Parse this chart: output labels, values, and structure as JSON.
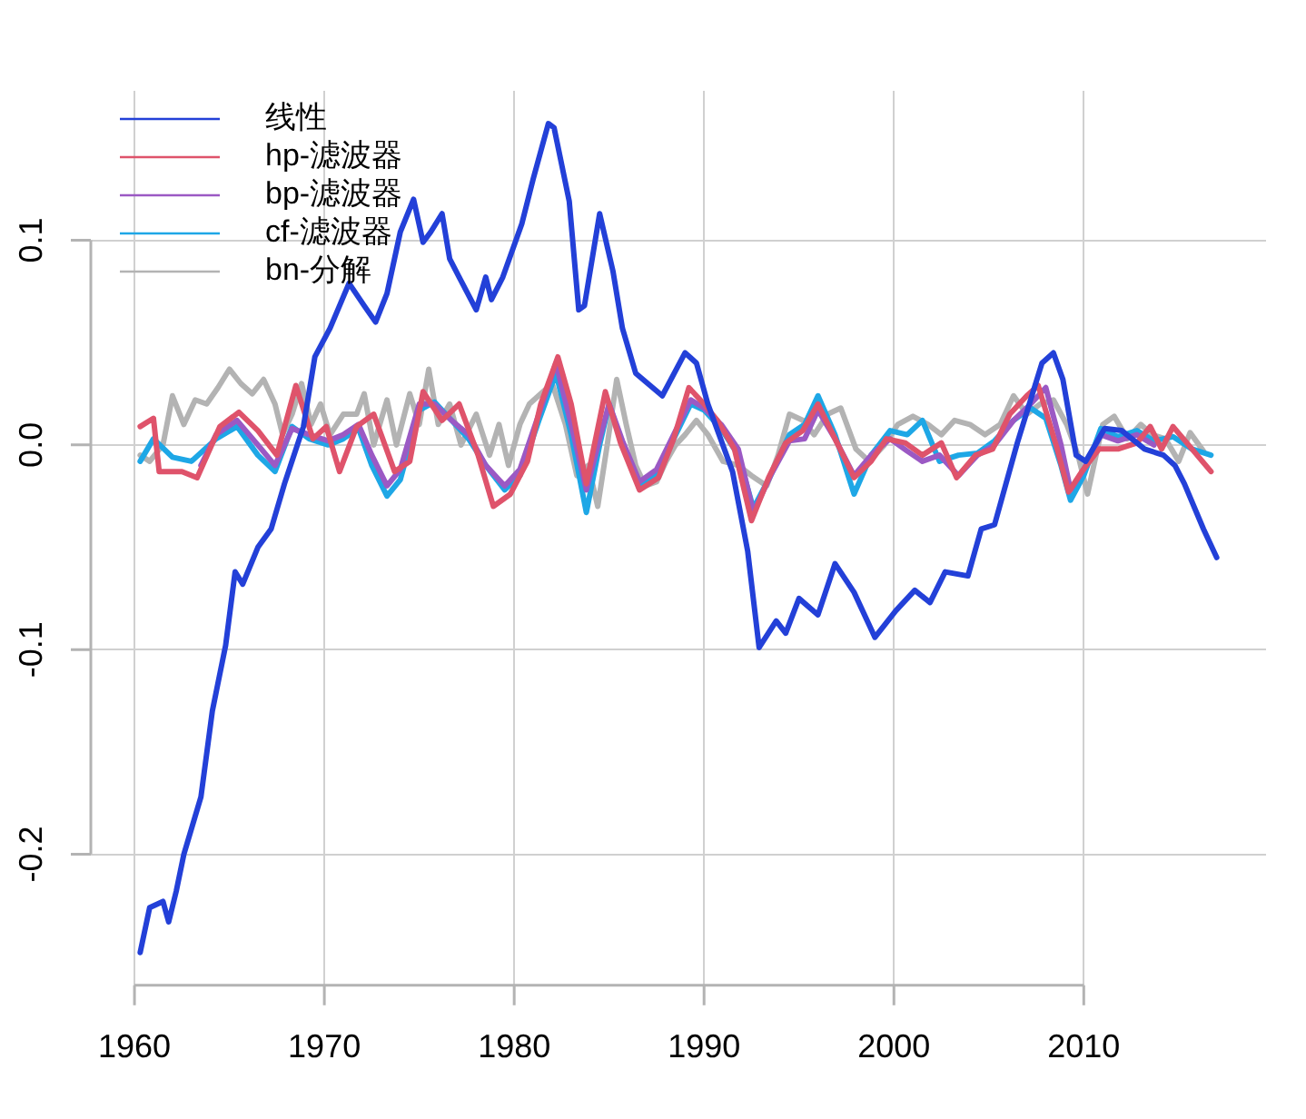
{
  "chart_data": {
    "type": "line",
    "legend": "top left",
    "grid": true,
    "marker": "none",
    "line_style": "solid",
    "xlim": [
      1957.7,
      2019.6
    ],
    "ylim": [
      -0.264,
      0.173
    ],
    "xticks": [
      1960,
      1970,
      1980,
      1990,
      2000,
      2010
    ],
    "yticks": [
      -0.2,
      -0.1,
      {
        "value": 0,
        "label": "0.0"
      },
      0.1
    ],
    "series": [
      {
        "name": "线性",
        "color": "#2340d8",
        "x": [
          1960.3,
          1960.8,
          1961.5,
          1961.8,
          1962.2,
          1962.6,
          1963.5,
          1964.1,
          1964.8,
          1965.3,
          1965.7,
          1966.5,
          1967.2,
          1967.9,
          1968.9,
          1969.5,
          1970.3,
          1971.3,
          1972.1,
          1972.7,
          1973.3,
          1974.0,
          1974.7,
          1975.2,
          1975.6,
          1976.2,
          1976.6,
          1977.1,
          1978.0,
          1978.5,
          1978.8,
          1979.4,
          1980.4,
          1981.0,
          1981.8,
          1982.1,
          1982.9,
          1983.4,
          1983.7,
          1984.5,
          1985.2,
          1985.7,
          1986.4,
          1987.8,
          1989.0,
          1989.6,
          1990.2,
          1991.5,
          1992.3,
          1992.9,
          1993.8,
          1994.3,
          1995.0,
          1996.0,
          1996.9,
          1997.9,
          1999.0,
          2000.1,
          2001.1,
          2001.9,
          2002.7,
          2003.9,
          2004.6,
          2005.3,
          2006.5,
          2007.8,
          2008.4,
          2008.9,
          2009.6,
          2010.1,
          2011.1,
          2012.0,
          2013.2,
          2014.2,
          2014.8,
          2015.3,
          2016.3,
          2017.0
        ],
        "values": [
          -0.248,
          -0.226,
          -0.223,
          -0.233,
          -0.218,
          -0.2,
          -0.172,
          -0.13,
          -0.098,
          -0.062,
          -0.068,
          -0.05,
          -0.041,
          -0.019,
          0.009,
          0.043,
          0.057,
          0.079,
          0.068,
          0.06,
          0.074,
          0.104,
          0.12,
          0.099,
          0.104,
          0.113,
          0.091,
          0.082,
          0.066,
          0.082,
          0.071,
          0.082,
          0.108,
          0.13,
          0.157,
          0.155,
          0.119,
          0.066,
          0.068,
          0.113,
          0.085,
          0.057,
          0.035,
          0.024,
          0.045,
          0.04,
          0.02,
          -0.013,
          -0.052,
          -0.099,
          -0.086,
          -0.092,
          -0.075,
          -0.083,
          -0.058,
          -0.072,
          -0.094,
          -0.081,
          -0.071,
          -0.077,
          -0.062,
          -0.064,
          -0.041,
          -0.039,
          0.001,
          0.04,
          0.045,
          0.032,
          -0.005,
          -0.008,
          0.008,
          0.007,
          -0.002,
          -0.005,
          -0.01,
          -0.019,
          -0.041,
          -0.055
        ]
      },
      {
        "name": "hp-滤波器",
        "color": "#df536b",
        "x": [
          1960.3,
          1961.0,
          1961.3,
          1962.5,
          1963.3,
          1964.5,
          1965.5,
          1966.5,
          1967.5,
          1968.5,
          1969.4,
          1970.1,
          1970.8,
          1971.7,
          1972.6,
          1973.7,
          1974.5,
          1975.2,
          1976.2,
          1977.1,
          1978.1,
          1978.9,
          1979.8,
          1980.7,
          1981.4,
          1982.3,
          1983.0,
          1983.8,
          1984.8,
          1985.6,
          1986.6,
          1987.6,
          1988.4,
          1989.2,
          1990.0,
          1990.7,
          1991.6,
          1992.5,
          1993.4,
          1994.3,
          1995.2,
          1996.0,
          1996.9,
          1997.9,
          1998.8,
          1999.6,
          2000.6,
          2001.5,
          2002.5,
          2003.3,
          2004.3,
          2005.2,
          2006.1,
          2007.0,
          2007.6,
          2008.6,
          2009.2,
          2009.9,
          2010.8,
          2011.8,
          2012.8,
          2013.5,
          2014.1,
          2014.7,
          2015.7,
          2016.7
        ],
        "values": [
          0.009,
          0.013,
          -0.013,
          -0.013,
          -0.016,
          0.009,
          0.016,
          0.007,
          -0.005,
          0.029,
          0.003,
          0.009,
          -0.013,
          0.009,
          0.015,
          -0.013,
          -0.008,
          0.026,
          0.012,
          0.02,
          -0.005,
          -0.03,
          -0.024,
          -0.008,
          0.02,
          0.043,
          0.02,
          -0.019,
          0.026,
          0.001,
          -0.022,
          -0.016,
          0.003,
          0.028,
          0.02,
          0.012,
          -0.002,
          -0.037,
          -0.016,
          0.001,
          0.007,
          0.02,
          0.003,
          -0.016,
          -0.008,
          0.003,
          0.001,
          -0.005,
          0.001,
          -0.016,
          -0.005,
          -0.002,
          0.015,
          0.024,
          0.029,
          -0.002,
          -0.023,
          -0.013,
          -0.002,
          -0.002,
          0.001,
          0.009,
          -0.002,
          0.009,
          -0.002,
          -0.013
        ]
      },
      {
        "name": "bp-滤波器",
        "color": "#9b59c4",
        "x": [
          1963.5,
          1964.3,
          1965.4,
          1966.5,
          1967.4,
          1968.3,
          1969.2,
          1970.2,
          1971.0,
          1971.8,
          1972.5,
          1973.3,
          1974.0,
          1975.0,
          1975.8,
          1976.7,
          1977.6,
          1978.5,
          1979.5,
          1980.3,
          1981.3,
          1982.2,
          1983.0,
          1983.8,
          1984.5,
          1985.0,
          1985.7,
          1986.6,
          1987.5,
          1988.4,
          1989.3,
          1990.0,
          1990.9,
          1991.8,
          1992.6,
          1993.5,
          1994.5,
          1995.3,
          1996.0,
          1996.9,
          1997.9,
          1998.8,
          1999.8,
          2000.7,
          2001.5,
          2002.4,
          2003.4,
          2004.4,
          2005.3,
          2006.3,
          2007.2,
          2008.0,
          2008.8,
          2009.3,
          2010.0,
          2010.9,
          2011.8,
          2012.8,
          2013.7
        ],
        "values": [
          -0.01,
          0.005,
          0.012,
          0.0,
          -0.01,
          0.008,
          0.005,
          0.002,
          0.005,
          0.01,
          -0.005,
          -0.02,
          -0.012,
          0.02,
          0.02,
          0.012,
          0.005,
          -0.01,
          -0.02,
          -0.012,
          0.015,
          0.04,
          0.01,
          -0.022,
          0.003,
          0.02,
          0.002,
          -0.018,
          -0.012,
          0.005,
          0.022,
          0.018,
          0.01,
          -0.002,
          -0.033,
          -0.015,
          0.002,
          0.003,
          0.017,
          0.003,
          -0.015,
          -0.005,
          0.003,
          -0.003,
          -0.008,
          -0.005,
          -0.015,
          -0.005,
          0.0,
          0.012,
          0.02,
          0.028,
          0.0,
          -0.022,
          -0.012,
          0.005,
          0.002,
          0.005,
          0.0
        ]
      },
      {
        "name": "cf-滤波器",
        "color": "#1ea7e6",
        "x": [
          1960.3,
          1961.0,
          1962.0,
          1963.0,
          1964.3,
          1965.4,
          1966.5,
          1967.4,
          1968.3,
          1969.2,
          1970.2,
          1971.0,
          1971.8,
          1972.5,
          1973.3,
          1974.0,
          1975.0,
          1975.8,
          1976.7,
          1977.6,
          1978.5,
          1979.5,
          1980.3,
          1981.3,
          1982.2,
          1983.0,
          1983.8,
          1984.5,
          1985.0,
          1985.7,
          1986.6,
          1987.5,
          1988.4,
          1989.3,
          1990.0,
          1990.9,
          1991.8,
          1992.6,
          1993.5,
          1994.5,
          1995.3,
          1996.0,
          1996.9,
          1997.9,
          1998.8,
          1999.8,
          2000.7,
          2001.5,
          2002.4,
          2003.4,
          2004.4,
          2005.3,
          2006.3,
          2007.2,
          2008.0,
          2008.8,
          2009.3,
          2010.0,
          2010.9,
          2011.8,
          2012.8,
          2013.7,
          2014.7,
          2015.7,
          2016.7
        ],
        "values": [
          -0.008,
          0.003,
          -0.006,
          -0.008,
          0.003,
          0.009,
          -0.005,
          -0.013,
          0.009,
          0.003,
          0.0,
          0.003,
          0.008,
          -0.01,
          -0.025,
          -0.017,
          0.017,
          0.021,
          0.012,
          0.003,
          -0.01,
          -0.022,
          -0.015,
          0.012,
          0.035,
          0.005,
          -0.033,
          0.0,
          0.02,
          0.0,
          -0.02,
          -0.015,
          0.003,
          0.02,
          0.017,
          0.008,
          -0.005,
          -0.031,
          -0.015,
          0.005,
          0.01,
          0.024,
          0.005,
          -0.024,
          -0.005,
          0.007,
          0.005,
          0.012,
          -0.008,
          -0.005,
          -0.004,
          0.002,
          0.012,
          0.018,
          0.013,
          -0.01,
          -0.027,
          -0.015,
          0.008,
          0.004,
          0.007,
          0.002,
          0.004,
          -0.002,
          -0.005
        ]
      },
      {
        "name": "bn-分解",
        "color": "#b3b3b3",
        "x": [
          1960.3,
          1960.8,
          1961.5,
          1962.0,
          1962.6,
          1963.2,
          1963.8,
          1964.4,
          1965.0,
          1965.6,
          1966.2,
          1966.8,
          1967.4,
          1967.8,
          1968.3,
          1968.8,
          1969.3,
          1969.8,
          1970.3,
          1971.0,
          1971.7,
          1972.1,
          1972.6,
          1973.3,
          1973.8,
          1974.5,
          1975.0,
          1975.5,
          1976.0,
          1976.6,
          1977.2,
          1978.0,
          1978.7,
          1979.2,
          1979.7,
          1980.3,
          1980.8,
          1981.4,
          1982.0,
          1982.7,
          1983.3,
          1983.9,
          1984.4,
          1984.9,
          1985.4,
          1985.9,
          1986.4,
          1986.9,
          1987.5,
          1988.0,
          1988.5,
          1989.0,
          1989.6,
          1990.2,
          1991.0,
          1991.8,
          1992.5,
          1993.3,
          1993.9,
          1994.5,
          1995.2,
          1995.8,
          1996.5,
          1997.2,
          1998.0,
          1998.7,
          1999.5,
          2000.2,
          2001.0,
          2001.8,
          2002.5,
          2003.2,
          2004.0,
          2004.8,
          2005.6,
          2006.3,
          2007.0,
          2007.7,
          2008.4,
          2009.1,
          2009.7,
          2010.2,
          2011.0,
          2011.6,
          2012.3,
          2013.0,
          2013.6,
          2014.3,
          2015.0,
          2015.6,
          2016.3
        ],
        "values": [
          -0.005,
          -0.008,
          0.0,
          0.024,
          0.01,
          0.022,
          0.02,
          0.028,
          0.037,
          0.03,
          0.025,
          0.032,
          0.02,
          0.005,
          0.015,
          0.03,
          0.01,
          0.02,
          0.005,
          0.015,
          0.015,
          0.025,
          0.0,
          0.022,
          0.0,
          0.025,
          0.01,
          0.037,
          0.01,
          0.02,
          0.0,
          0.015,
          -0.005,
          0.01,
          -0.01,
          0.01,
          0.02,
          0.025,
          0.03,
          0.01,
          -0.015,
          -0.01,
          -0.03,
          0.0,
          0.032,
          0.01,
          -0.01,
          -0.02,
          -0.018,
          -0.008,
          0.0,
          0.005,
          0.012,
          0.005,
          -0.008,
          -0.01,
          -0.015,
          -0.02,
          -0.005,
          0.015,
          0.012,
          0.005,
          0.015,
          0.018,
          -0.002,
          -0.008,
          0.0,
          0.01,
          0.014,
          0.01,
          0.005,
          0.012,
          0.01,
          0.005,
          0.01,
          0.024,
          0.015,
          0.02,
          0.022,
          0.01,
          -0.005,
          -0.024,
          0.01,
          0.014,
          0.003,
          0.01,
          0.005,
          0.003,
          -0.008,
          0.006,
          -0.003
        ]
      }
    ]
  }
}
